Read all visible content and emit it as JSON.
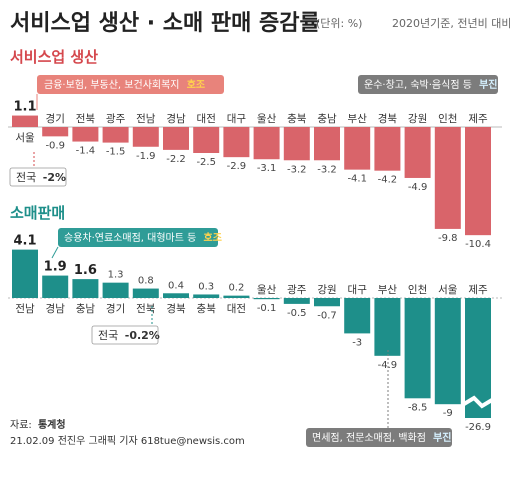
{
  "header": {
    "title": "서비스업 생산 · 소매 판매 증감률",
    "unit": "(단위: %)",
    "basis": "2020년기준, 전년비 대비"
  },
  "sections": {
    "service_title": "서비스업 생산",
    "retail_title": "소매판매"
  },
  "annotations": {
    "service_up_text": "금융·보험, 부동산, 보건사회복지",
    "service_up_tag": "호조",
    "service_down_text": "운수·창고, 숙박·음식점 등",
    "service_down_tag": "부진",
    "retail_up_text": "승용차·연료소매점, 대형마트 등",
    "retail_up_tag": "호조",
    "retail_down_text": "면세점, 전문소매점, 백화점",
    "retail_down_tag": "부진"
  },
  "national": {
    "label": "전국",
    "service_value": "-2%",
    "retail_value": "-0.2%"
  },
  "footer": {
    "source_label": "자료:",
    "source": "통계청",
    "credit": "21.02.09 전진우 그래픽 기자 618tue@newsis.com"
  },
  "colors": {
    "service_bar": "#d9646a",
    "service_accent": "#d5484d",
    "retail_bar": "#1e8f8a",
    "label_box": "#6d6d6d",
    "ann_red": "#e8837b",
    "ann_teal": "#2f9c97"
  },
  "chart_data": [
    {
      "type": "bar",
      "title": "서비스업 생산",
      "categories": [
        "서울",
        "경기",
        "전북",
        "광주",
        "전남",
        "경남",
        "대전",
        "대구",
        "울산",
        "충북",
        "충남",
        "부산",
        "경북",
        "강원",
        "인천",
        "제주"
      ],
      "values": [
        1.1,
        -0.9,
        -1.4,
        -1.5,
        -1.9,
        -2.2,
        -2.5,
        -2.9,
        -3.1,
        -3.2,
        -3.2,
        -4.1,
        -4.2,
        -4.9,
        -9.8,
        -10.4
      ],
      "value_labels": [
        "1.1",
        "-0.9",
        "-1.4",
        "-1.5",
        "-1.9",
        "-2.2",
        "-2.5",
        "-2.9",
        "-3.1",
        "-3.2",
        "-3.2",
        "-4.1",
        "-4.2",
        "-4.9",
        "-9.8",
        "-10.4"
      ],
      "national_average": -2
    },
    {
      "type": "bar",
      "title": "소매판매",
      "categories": [
        "전남",
        "경남",
        "충남",
        "경기",
        "전북",
        "경북",
        "충북",
        "대전",
        "울산",
        "광주",
        "강원",
        "대구",
        "부산",
        "인천",
        "서울",
        "제주"
      ],
      "values": [
        4.1,
        1.9,
        1.6,
        1.3,
        0.8,
        0.4,
        0.3,
        0.2,
        -0.1,
        -0.5,
        -0.7,
        -3,
        -4.9,
        -8.5,
        -9,
        -26.9
      ],
      "value_labels": [
        "4.1",
        "1.9",
        "1.6",
        "1.3",
        "0.8",
        "0.4",
        "0.3",
        "0.2",
        "-0.1",
        "-0.5",
        "-0.7",
        "-3",
        "-4.9",
        "-8.5",
        "-9",
        "-26.9"
      ],
      "national_average": -0.2,
      "broken_axis_category": "제주"
    }
  ]
}
